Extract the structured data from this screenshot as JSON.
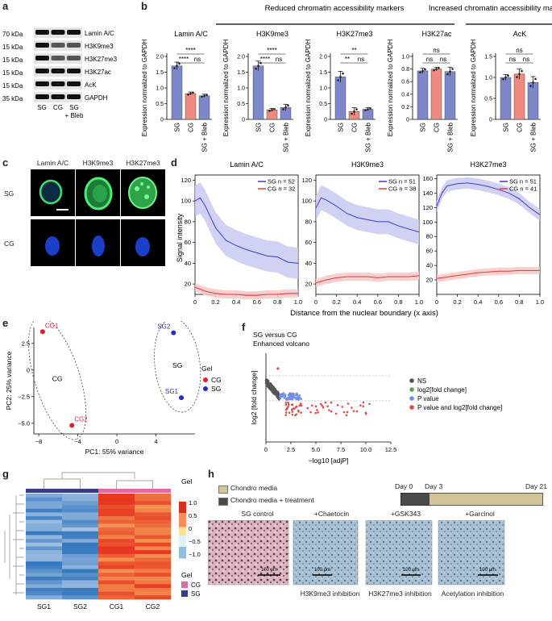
{
  "panels": {
    "a": "a",
    "b": "b",
    "c": "c",
    "d": "d",
    "e": "e",
    "f": "f",
    "g": "g",
    "h": "h"
  },
  "colors": {
    "sg": "#7d87c9",
    "cg": "#ef8a80",
    "sg_line": "#3a3ad6",
    "cg_line": "#e23a3a",
    "sg_band": "#c9c9f2",
    "cg_band": "#f6c8c8",
    "pca_cg": "#e21d2b",
    "pca_sg": "#2b2bc9",
    "volcano_ns": "#555555",
    "volcano_fc": "#5aa55a",
    "volcano_p": "#6f8ee0",
    "volcano_pfc": "#e14b4b",
    "heat_cg_bar": "#e36aa4",
    "heat_sg_bar": "#3b3a86",
    "media": "#d3c49a",
    "media_treat": "#4a4a4a"
  },
  "panel_a": {
    "bands": [
      {
        "kda": "70 kDa",
        "label": "Lamin A/C"
      },
      {
        "kda": "15 kDa",
        "label": "H3K9me3"
      },
      {
        "kda": "15 kDa",
        "label": "H3K27me3"
      },
      {
        "kda": "15 kDa",
        "label": "H3K27ac"
      },
      {
        "kda": "15 kDa",
        "label": "AcK"
      },
      {
        "kda": "35 kDa",
        "label": "GAPDH"
      }
    ],
    "lanes": [
      "SG",
      "CG",
      "SG",
      "+ Bleb"
    ]
  },
  "panel_b": {
    "group_reduced": "Reduced chromatin accessibility markers",
    "group_increased": "Increased chromatin accessibility markers",
    "ylabel": "Expression normalized to GAPDH",
    "xticks": [
      "SG",
      "CG",
      "SG + Bleb"
    ]
  },
  "chart_data": [
    {
      "type": "bar",
      "title": "Lamin A/C",
      "categories": [
        "SG",
        "CG",
        "SG + Bleb"
      ],
      "values": [
        1.7,
        0.82,
        0.75
      ],
      "errors": [
        0.12,
        0.05,
        0.05
      ],
      "ylabel": "Expression normalized to GAPDH",
      "ylim": [
        0,
        2.0
      ],
      "yticks": [
        0,
        0.5,
        1.0,
        1.5,
        2.0
      ],
      "significance": [
        "****",
        "****",
        "ns"
      ]
    },
    {
      "type": "bar",
      "title": "H3K9me3",
      "categories": [
        "SG",
        "CG",
        "SG + Bleb"
      ],
      "values": [
        1.7,
        0.3,
        0.38
      ],
      "errors": [
        0.15,
        0.05,
        0.1
      ],
      "ylabel": "Expression normalized to GAPDH",
      "ylim": [
        0,
        2.0
      ],
      "yticks": [
        0,
        0.5,
        1.0,
        1.5,
        2.0
      ],
      "significance": [
        "****",
        "****",
        "ns"
      ]
    },
    {
      "type": "bar",
      "title": "H3K27me3",
      "categories": [
        "SG",
        "CG",
        "SG + Bleb"
      ],
      "values": [
        1.35,
        0.25,
        0.32
      ],
      "errors": [
        0.18,
        0.12,
        0.05
      ],
      "ylabel": "Expression normalized to GAPDH",
      "ylim": [
        0,
        2.0
      ],
      "yticks": [
        0,
        0.5,
        1.0,
        1.5,
        2.0
      ],
      "significance": [
        "**",
        "**",
        "ns"
      ]
    },
    {
      "type": "bar",
      "title": "H3K27ac",
      "categories": [
        "SG",
        "CG",
        "SG + Bleb"
      ],
      "values": [
        0.77,
        0.8,
        0.76
      ],
      "errors": [
        0.04,
        0.03,
        0.07
      ],
      "ylabel": "Expression normalized to GAPDH",
      "ylim": [
        0,
        1.0
      ],
      "yticks": [
        0,
        0.2,
        0.4,
        0.6,
        0.8,
        1.0
      ],
      "significance": [
        "ns",
        "ns",
        "ns"
      ]
    },
    {
      "type": "bar",
      "title": "AcK",
      "categories": [
        "SG",
        "CG",
        "SG + Bleb"
      ],
      "values": [
        1.0,
        1.08,
        0.88
      ],
      "errors": [
        0.07,
        0.12,
        0.14
      ],
      "ylabel": "Expression normalized to GAPDH",
      "ylim": [
        0,
        1.5
      ],
      "yticks": [
        0,
        0.5,
        1.0,
        1.5
      ],
      "significance": [
        "ns",
        "ns",
        "ns"
      ]
    },
    {
      "type": "line",
      "title": "Lamin A/C",
      "xlabel": "Distance from the nuclear boundary (x axis)",
      "ylabel": "Signal intensity",
      "xlim": [
        0,
        1.0
      ],
      "ylim": [
        10,
        125
      ],
      "xticks": [
        0,
        0.2,
        0.4,
        0.6,
        0.8,
        1.0
      ],
      "yticks": [
        20,
        40,
        60,
        80,
        100,
        120
      ],
      "series": [
        {
          "name": "SG n = 52",
          "x": [
            0,
            0.05,
            0.1,
            0.2,
            0.3,
            0.4,
            0.5,
            0.6,
            0.7,
            0.8,
            0.9,
            1.0
          ],
          "y": [
            100,
            103,
            95,
            74,
            62,
            57,
            53,
            50,
            47,
            46,
            41,
            40
          ],
          "band": 15
        },
        {
          "name": "CG n = 32",
          "x": [
            0,
            0.1,
            0.2,
            0.3,
            0.4,
            0.5,
            0.6,
            0.7,
            0.8,
            0.9,
            1.0
          ],
          "y": [
            17,
            13,
            11,
            10,
            10,
            9,
            9,
            10,
            10,
            11,
            11
          ],
          "band": 4
        }
      ]
    },
    {
      "type": "line",
      "title": "H3K9me3",
      "xlabel": "Distance from the nuclear boundary (x axis)",
      "xlim": [
        0,
        1.0
      ],
      "ylim": [
        10,
        125
      ],
      "xticks": [
        0,
        0.2,
        0.4,
        0.6,
        0.8,
        1.0
      ],
      "yticks": [
        20,
        40,
        60,
        80,
        100,
        120
      ],
      "series": [
        {
          "name": "SG n = 51",
          "x": [
            0,
            0.05,
            0.1,
            0.2,
            0.3,
            0.4,
            0.5,
            0.6,
            0.7,
            0.8,
            0.9,
            1.0
          ],
          "y": [
            93,
            103,
            101,
            95,
            88,
            84,
            82,
            80,
            80,
            76,
            73,
            70
          ],
          "band": 12
        },
        {
          "name": "CG n = 38",
          "x": [
            0,
            0.1,
            0.2,
            0.3,
            0.4,
            0.5,
            0.6,
            0.7,
            0.8,
            0.9,
            1.0
          ],
          "y": [
            21,
            24,
            26,
            27,
            27,
            27,
            26,
            27,
            27,
            27,
            28
          ],
          "band": 4
        }
      ]
    },
    {
      "type": "line",
      "title": "H3K27me3",
      "xlabel": "Distance from the nuclear boundary (x axis)",
      "xlim": [
        0,
        1.0
      ],
      "ylim": [
        0,
        165
      ],
      "xticks": [
        0,
        0.2,
        0.4,
        0.6,
        0.8,
        1.0
      ],
      "yticks": [
        20,
        40,
        60,
        80,
        100,
        120,
        140,
        160
      ],
      "series": [
        {
          "name": "SG n = 51",
          "x": [
            0,
            0.05,
            0.1,
            0.2,
            0.3,
            0.4,
            0.5,
            0.6,
            0.7,
            0.8,
            0.9,
            1.0
          ],
          "y": [
            122,
            140,
            150,
            153,
            154,
            152,
            149,
            145,
            140,
            132,
            120,
            110
          ],
          "band": 8
        },
        {
          "name": "CG n = 41",
          "x": [
            0,
            0.1,
            0.2,
            0.3,
            0.4,
            0.5,
            0.6,
            0.7,
            0.8,
            0.9,
            1.0
          ],
          "y": [
            22,
            24,
            26,
            28,
            30,
            31,
            32,
            32,
            33,
            33,
            33
          ],
          "band": 5
        }
      ]
    },
    {
      "type": "scatter",
      "title": "",
      "xlabel": "PC1: 55% variance",
      "ylabel": "PC2: 25% variance",
      "xlim": [
        -8.5,
        8
      ],
      "ylim": [
        -6,
        4
      ],
      "xticks": [
        -8,
        -4,
        0,
        4
      ],
      "yticks": [
        -5.0,
        -2.5,
        0,
        2.5
      ],
      "points": [
        {
          "label": "CG1",
          "group": "CG",
          "x": -7.6,
          "y": 3.6
        },
        {
          "label": "CG2",
          "group": "CG",
          "x": -4.6,
          "y": -5.2
        },
        {
          "label": "SG2",
          "group": "SG",
          "x": 5.8,
          "y": 3.5
        },
        {
          "label": "SG1",
          "group": "SG",
          "x": 6.6,
          "y": -2.6
        }
      ],
      "ellipse_labels": [
        "CG",
        "SG"
      ],
      "legend_title": "Gel",
      "legend": [
        "CG",
        "SG"
      ]
    },
    {
      "type": "scatter",
      "title": "SG versus CG Enhanced volcano",
      "xlabel": "−log10 [adjP]",
      "ylabel": "log2 [fold change]",
      "xlim": [
        0,
        12.5
      ],
      "xticks": [
        0,
        2.5,
        5.0,
        7.5,
        10.0,
        12.5
      ],
      "legend": [
        "NS",
        "log2[fold change]",
        "P value",
        "P value and log2[fold change]"
      ]
    },
    {
      "type": "heatmap",
      "title": "",
      "columns": [
        "SG1",
        "SG2",
        "CG1",
        "CG2"
      ],
      "colorbar_ticks": [
        "1.0",
        "0.5",
        "0",
        "−0.5",
        "−1.0"
      ],
      "legend_title": "Gel",
      "legend": [
        "CG",
        "SG"
      ]
    }
  ],
  "panel_c": {
    "cols": [
      "Lamin A/C",
      "H3K9me3",
      "H3K27me3"
    ],
    "rows": [
      "SG",
      "CG"
    ]
  },
  "panel_d": {
    "xlabel": "Distance from the nuclear boundary (x axis)",
    "ylabel": "Signal intensity"
  },
  "panel_e": {
    "legend_title": "Gel"
  },
  "panel_f": {
    "title1": "SG versus CG",
    "title2": "Enhanced volcano",
    "ylabel": "log2 [fold change]",
    "xlabel": "−log10 [adjP]"
  },
  "panel_g": {
    "legend_title_top": "Gel",
    "legend_title_bottom": "Gel"
  },
  "panel_h": {
    "legend": [
      "Chondro media",
      "Chondro media + treatment"
    ],
    "timeline": [
      "Day 0",
      "Day 3",
      "Day 21"
    ],
    "images": [
      {
        "title": "SG control",
        "caption": "",
        "scale": "100 μm"
      },
      {
        "title": "+Chaetocin",
        "caption": "H3K9me3 inhibition",
        "scale": "100 μm"
      },
      {
        "title": "+GSK343",
        "caption": "H3K27me3 inhibition",
        "scale": "100 μm"
      },
      {
        "title": "+Garcinol",
        "caption": "Acetylation inhibition",
        "scale": "100 μm"
      }
    ]
  }
}
